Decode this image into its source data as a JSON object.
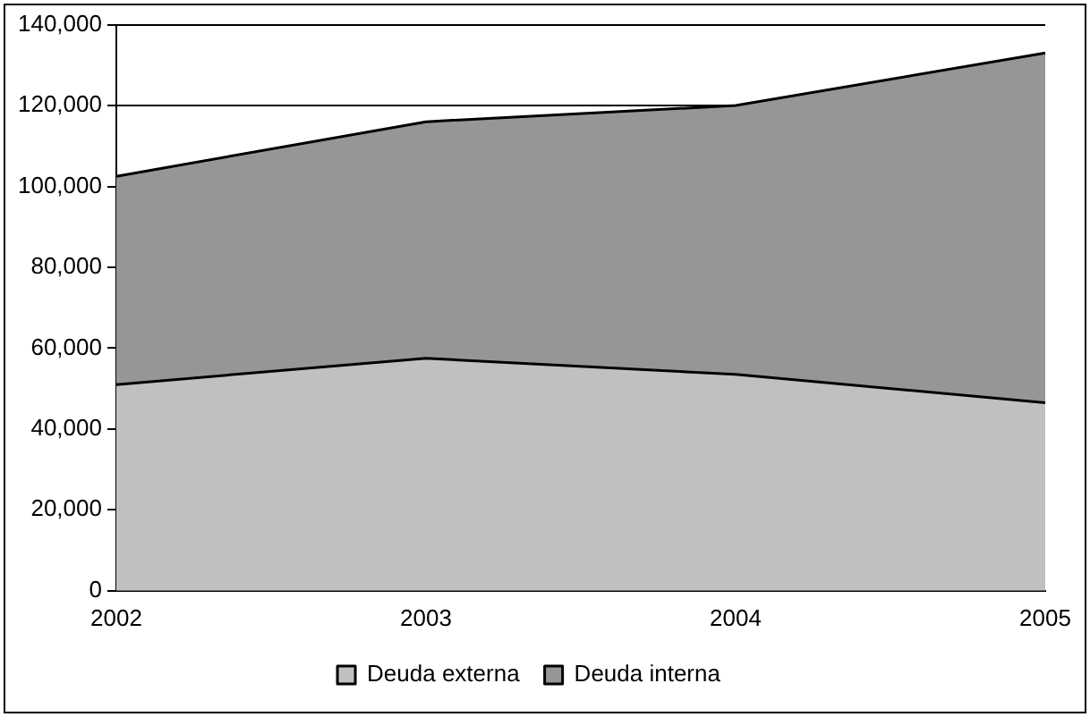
{
  "chart_data": {
    "type": "area",
    "stacked": true,
    "categories": [
      "2002",
      "2003",
      "2004",
      "2005"
    ],
    "series": [
      {
        "name": "Deuda externa",
        "color": "#c0c0c0",
        "values": [
          51000,
          57500,
          53500,
          46500
        ]
      },
      {
        "name": "Deuda interna",
        "color": "#969696",
        "values": [
          51500,
          58500,
          66500,
          86500
        ]
      }
    ],
    "ylim": [
      0,
      140000
    ],
    "yticks": [
      {
        "value": 0,
        "label": "0"
      },
      {
        "value": 20000,
        "label": "20,000"
      },
      {
        "value": 40000,
        "label": "40,000"
      },
      {
        "value": 60000,
        "label": "60,000"
      },
      {
        "value": 80000,
        "label": "80,000"
      },
      {
        "value": 100000,
        "label": "100,000"
      },
      {
        "value": 120000,
        "label": "120,000"
      },
      {
        "value": 140000,
        "label": "140,000"
      }
    ],
    "grid": "y",
    "legend": "bottom"
  }
}
